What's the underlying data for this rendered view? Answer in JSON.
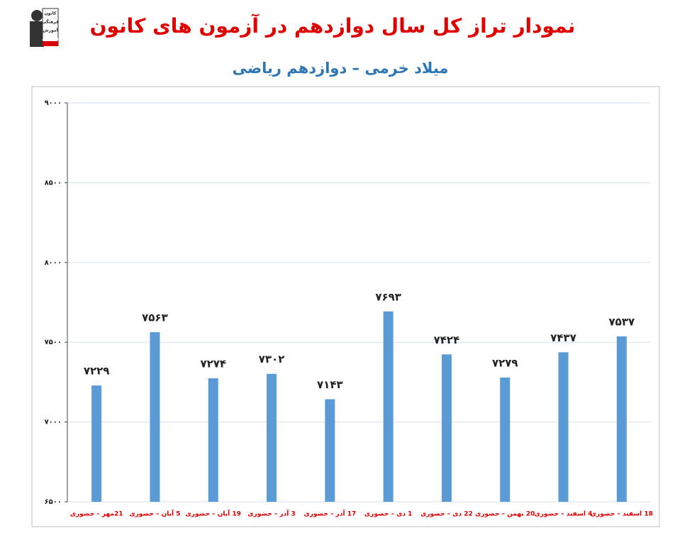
{
  "chart_data": {
    "type": "bar",
    "title": "نمودار تراز کل سال دوازدهم در آزمون های کانون",
    "subtitle": "میلاد خرمی – دوازدهم ریاضی",
    "logo_text": [
      "کانون",
      "فرهنگی",
      "آموزش",
      "قلم چی"
    ],
    "categories": [
      "21مهر – حضوری",
      "5 آبان – حضوری",
      "19 آبان – حضوری",
      "3 آذر – حضوری",
      "17 آذر – حضوری",
      "1 دی – حضوری",
      "22 دی – حضوری",
      "20 بهمن – حضوری",
      "4 اسفند – حضوری",
      "18 اسفند – حضوری"
    ],
    "values": [
      7229,
      7563,
      7274,
      7302,
      7143,
      7693,
      7424,
      7279,
      7437,
      7537
    ],
    "value_labels": [
      "۷۲۲۹",
      "۷۵۶۳",
      "۷۲۷۴",
      "۷۳۰۲",
      "۷۱۴۳",
      "۷۶۹۳",
      "۷۴۲۴",
      "۷۲۷۹",
      "۷۴۳۷",
      "۷۵۳۷"
    ],
    "color": "#5b9bd5",
    "ylim": [
      6500,
      9000
    ],
    "yticks": [
      {
        "value": 6500,
        "label": "۶۵۰۰"
      },
      {
        "value": 7000,
        "label": "۷۰۰۰"
      },
      {
        "value": 7500,
        "label": "۷۵۰۰"
      },
      {
        "value": 8000,
        "label": "۸۰۰۰"
      },
      {
        "value": 8500,
        "label": "۸۵۰۰"
      },
      {
        "value": 9000,
        "label": "۹۰۰۰"
      }
    ],
    "grid": true
  }
}
